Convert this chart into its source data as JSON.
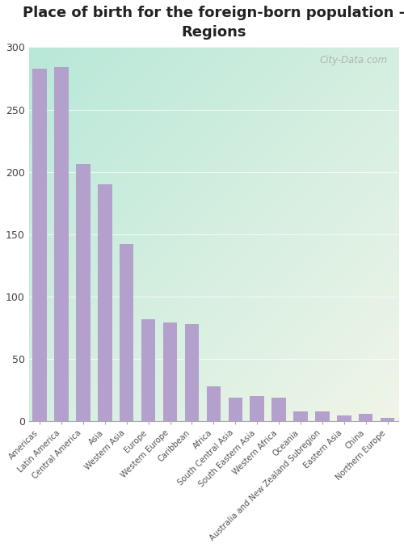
{
  "title": "Place of birth for the foreign-born population -\nRegions",
  "categories": [
    "Americas",
    "Latin America",
    "Central America",
    "Asia",
    "Western Asia",
    "Europe",
    "Western Europe",
    "Caribbean",
    "Africa",
    "South Central Asia",
    "South Eastern Asia",
    "Western Africa",
    "Oceania",
    "Australia and New Zealand Subregion",
    "Eastern Asia",
    "China",
    "Northern Europe"
  ],
  "values": [
    283,
    284,
    206,
    190,
    142,
    82,
    79,
    78,
    28,
    19,
    20,
    19,
    8,
    8,
    5,
    6,
    3
  ],
  "bar_color": "#b3a0cc",
  "bg_color_topleft": "#b8e8d8",
  "bg_color_bottomright": "#f0f5e8",
  "ylim": [
    0,
    300
  ],
  "yticks": [
    0,
    50,
    100,
    150,
    200,
    250,
    300
  ],
  "watermark": "City-Data.com",
  "title_fontsize": 13,
  "grid_color": "#e0e8e0"
}
